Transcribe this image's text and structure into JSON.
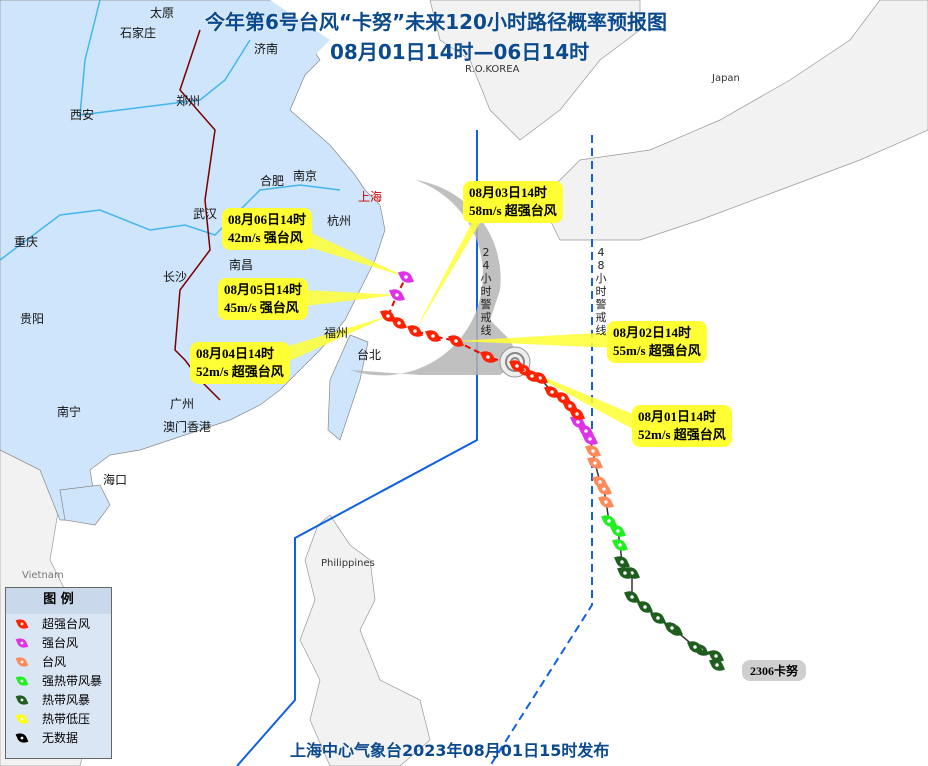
{
  "title": {
    "line1": "今年第6号台风“卡努”未来120小时路径概率预报图",
    "line2": "08月01日14时—06日14时"
  },
  "footer": "上海中心气象台2023年08月01日15时发布",
  "typhoon_tag": "2306卡努",
  "cities": [
    "太原",
    "石家庄",
    "济南",
    "郑州",
    "西安",
    "合肥",
    "南京",
    "上海",
    "武汉",
    "杭州",
    "重庆",
    "南昌",
    "长沙",
    "福州",
    "贵阳",
    "台北",
    "广州",
    "南宁",
    "澳门香港",
    "海口"
  ],
  "countries": {
    "korea": "R.O.KOREA",
    "japan": "Japan",
    "philippines": "Philippines",
    "vietnam": "Vietnam"
  },
  "warning_lines": {
    "h24": "24小时警戒线",
    "h48": "48小时警戒线"
  },
  "forecasts": [
    {
      "time": "08月01日14时",
      "info": "52m/s 超强台风"
    },
    {
      "time": "08月02日14时",
      "info": "55m/s 超强台风"
    },
    {
      "time": "08月03日14时",
      "info": "58m/s 超强台风"
    },
    {
      "time": "08月04日14时",
      "info": "52m/s 超强台风"
    },
    {
      "time": "08月05日14时",
      "info": "45m/s 强台风"
    },
    {
      "time": "08月06日14时",
      "info": "42m/s 强台风"
    }
  ],
  "legend": {
    "title": "图 例",
    "items": [
      {
        "label": "超强台风",
        "color": "#ff2200"
      },
      {
        "label": "强台风",
        "color": "#e033e8"
      },
      {
        "label": "台风",
        "color": "#ff8a5a"
      },
      {
        "label": "强热带风暴",
        "color": "#22ee22"
      },
      {
        "label": "热带风暴",
        "color": "#1f5e1f"
      },
      {
        "label": "热带低压",
        "color": "#ffff00"
      },
      {
        "label": "无数据",
        "color": "#000000"
      }
    ]
  },
  "colors": {
    "china_land": "#cfe5fb",
    "other_land": "#f2f2f2",
    "cone": "#b5b5b5",
    "title": "#0b4a8c",
    "warning_line": "#1060e0"
  }
}
